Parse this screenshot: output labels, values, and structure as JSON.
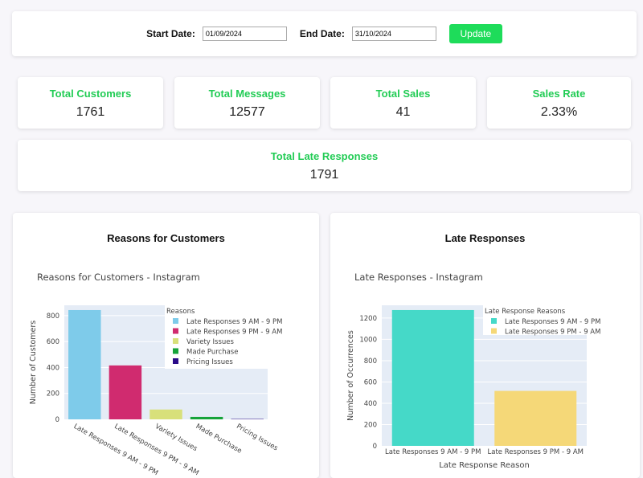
{
  "filters": {
    "start_label": "Start Date:",
    "start_value": "01/09/2024",
    "end_label": "End Date:",
    "end_value": "31/10/2024",
    "update_label": "Update"
  },
  "stats": [
    {
      "title": "Total Customers",
      "value": "1761"
    },
    {
      "title": "Total Messages",
      "value": "12577"
    },
    {
      "title": "Total Sales",
      "value": "41"
    },
    {
      "title": "Sales Rate",
      "value": "2.33%"
    },
    {
      "title": "Total Late Responses",
      "value": "1791"
    }
  ],
  "colors": {
    "accent": "#22cc55",
    "plot_bg": "#e5ecf6"
  },
  "chart_data": [
    {
      "type": "bar",
      "card_title": "Reasons for Customers",
      "title": "Reasons for Customers - Instagram",
      "xlabel": "",
      "ylabel": "Number of Customers",
      "legend_title": "Reasons",
      "legend_placement": "top-right",
      "categories": [
        "Late Responses 9 AM - 9 PM",
        "Late Responses 9 PM - 9 AM",
        "Variety Issues",
        "Made Purchase",
        "Pricing Issues"
      ],
      "values": [
        843,
        416,
        76,
        19,
        3
      ],
      "colors": [
        "#7ecbea",
        "#d02b6f",
        "#d8e07a",
        "#16a33a",
        "#2a0a88"
      ],
      "ylim": [
        0,
        880
      ],
      "yticks": [
        0,
        200,
        400,
        600,
        800
      ],
      "grid": true
    },
    {
      "type": "bar",
      "card_title": "Late Responses",
      "title": "Late Responses - Instagram",
      "xlabel": "Late Response Reason",
      "ylabel": "Number of Occurrences",
      "legend_title": "Late Response Reasons",
      "legend_placement": "top-right",
      "categories": [
        "Late Responses 9 AM - 9 PM",
        "Late Responses 9 PM - 9 AM"
      ],
      "values": [
        1275,
        516
      ],
      "colors": [
        "#45d9c8",
        "#f5d878"
      ],
      "ylim": [
        0,
        1320
      ],
      "yticks": [
        0,
        200,
        400,
        600,
        800,
        1000,
        1200
      ],
      "grid": true
    }
  ]
}
